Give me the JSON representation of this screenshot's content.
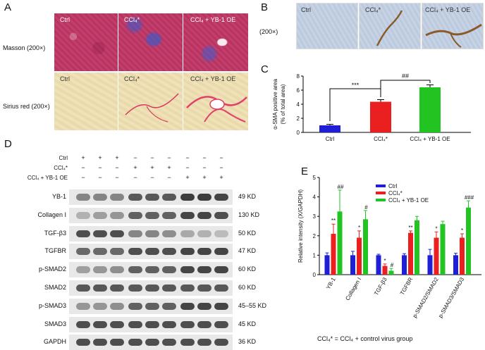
{
  "panels": {
    "A": "A",
    "B": "B",
    "C": "C",
    "D": "D",
    "E": "E"
  },
  "panelA": {
    "rows": [
      "Masson (200×)",
      "Sirius red (200×)"
    ],
    "cols": [
      "Ctrl",
      "CCl₄*",
      "CCl₄ + YB-1 OE"
    ]
  },
  "panelB": {
    "mag": "(200×)",
    "cols": [
      "Ctrl",
      "CCl₄*",
      "CCl₄ + YB-1 OE"
    ]
  },
  "panelC": {
    "chart_data": {
      "type": "bar",
      "categories": [
        "Ctrl",
        "CCl₄*",
        "CCl₄ + YB-1 OE"
      ],
      "values": [
        1.0,
        4.35,
        6.4
      ],
      "errors": [
        0.15,
        0.3,
        0.35
      ],
      "colors": [
        "#1f1fd6",
        "#ea2020",
        "#22c422"
      ],
      "ylabel": "α-SMA positive area",
      "ylabel2": "(% of total area)",
      "ylim": [
        0,
        8
      ],
      "yticks": [
        "0",
        "2",
        "4",
        "6",
        "8"
      ],
      "annotations": [
        "***",
        "##"
      ]
    }
  },
  "panelD": {
    "treatments": [
      "Ctrl",
      "CCl₄*",
      "CCl₄ + YB-1 OE"
    ],
    "signs": [
      [
        "+",
        "+",
        "+",
        "−",
        "−",
        "−",
        "−",
        "−",
        "−"
      ],
      [
        "−",
        "−",
        "−",
        "+",
        "+",
        "+",
        "−",
        "−",
        "−"
      ],
      [
        "−",
        "−",
        "−",
        "−",
        "−",
        "−",
        "+",
        "+",
        "+"
      ]
    ],
    "proteins": [
      "YB-1",
      "Collagen I",
      "TGF-β3",
      "TGFBR",
      "p-SMAD2",
      "SMAD2",
      "p-SMAD3",
      "SMAD3",
      "GAPDH"
    ],
    "sizes": [
      "49 KD",
      "130 KD",
      "50 KD",
      "47 KD",
      "60 KD",
      "60 KD",
      "45–55 KD",
      "45 KD",
      "36 KD"
    ],
    "intensity": [
      [
        0.55,
        0.55,
        0.55,
        0.8,
        0.8,
        0.8,
        0.95,
        0.95,
        0.9
      ],
      [
        0.3,
        0.4,
        0.45,
        0.75,
        0.75,
        0.75,
        0.9,
        0.9,
        0.85
      ],
      [
        0.85,
        0.85,
        0.85,
        0.55,
        0.55,
        0.5,
        0.35,
        0.3,
        0.25
      ],
      [
        0.7,
        0.7,
        0.7,
        0.85,
        0.85,
        0.85,
        0.9,
        0.9,
        0.9
      ],
      [
        0.4,
        0.45,
        0.5,
        0.75,
        0.75,
        0.75,
        0.9,
        0.9,
        0.9
      ],
      [
        0.8,
        0.8,
        0.8,
        0.8,
        0.8,
        0.8,
        0.8,
        0.8,
        0.8
      ],
      [
        0.45,
        0.45,
        0.5,
        0.75,
        0.75,
        0.75,
        0.9,
        0.9,
        0.9
      ],
      [
        0.85,
        0.85,
        0.85,
        0.85,
        0.85,
        0.85,
        0.85,
        0.85,
        0.85
      ],
      [
        0.85,
        0.85,
        0.85,
        0.85,
        0.85,
        0.85,
        0.85,
        0.85,
        0.85
      ]
    ]
  },
  "panelE": {
    "chart_data": {
      "type": "bar",
      "categories": [
        "YB-1",
        "Collagen I",
        "TGF-β3",
        "TGFBR",
        "p-SMAD2/SMAD2",
        "p-SMAD3/SMAD3"
      ],
      "series": [
        {
          "name": "Ctrl",
          "color": "#1f1fd6",
          "values": [
            1.0,
            1.0,
            1.0,
            1.0,
            1.0,
            1.0
          ],
          "errors": [
            0.12,
            0.2,
            0.05,
            0.08,
            0.3,
            0.1
          ]
        },
        {
          "name": "CCl₄*",
          "color": "#ea2020",
          "values": [
            2.1,
            1.9,
            0.45,
            2.15,
            1.9,
            1.9
          ],
          "errors": [
            0.5,
            0.35,
            0.1,
            0.1,
            0.3,
            0.2
          ]
        },
        {
          "name": "CCl₄ + YB-1 OE",
          "color": "#22c422",
          "values": [
            3.25,
            2.85,
            0.2,
            2.8,
            2.6,
            3.45
          ],
          "errors": [
            1.1,
            0.45,
            0.12,
            0.2,
            0.15,
            0.35
          ]
        }
      ],
      "sig_red": [
        "**",
        "*",
        "*",
        "**",
        "*",
        "*"
      ],
      "sig_green": [
        "##",
        "#",
        "#",
        "",
        "",
        "###"
      ],
      "ylabel": "Relative intensity (X/GAPDH)",
      "ylim": [
        0,
        5
      ],
      "yticks": [
        "0",
        "1",
        "2",
        "3",
        "4",
        "5"
      ]
    }
  },
  "footnote": "CCl₄* = CCl₄ + control virus group"
}
